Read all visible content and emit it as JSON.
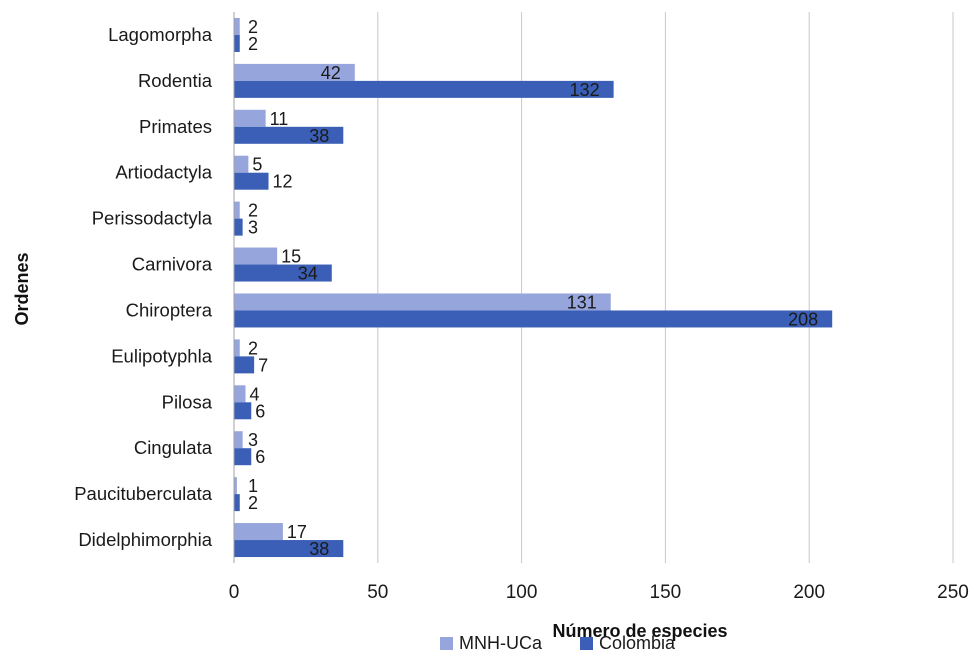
{
  "chart_data": {
    "type": "bar",
    "orientation": "horizontal",
    "categories": [
      "Lagomorpha",
      "Rodentia",
      "Primates",
      "Artiodactyla",
      "Perissodactyla",
      "Carnivora",
      "Chiroptera",
      "Eulipotyphla",
      "Pilosa",
      "Cingulata",
      "Paucituberculata",
      "Didelphimorphia"
    ],
    "series": [
      {
        "name": "MNH-UCa",
        "color": "#96a6dc",
        "values": [
          2,
          42,
          11,
          5,
          2,
          15,
          131,
          2,
          4,
          3,
          1,
          17
        ]
      },
      {
        "name": "Colombia",
        "color": "#3b5fb6",
        "values": [
          2,
          132,
          38,
          12,
          3,
          34,
          208,
          7,
          6,
          6,
          2,
          38
        ]
      }
    ],
    "xlabel": "Número de especies",
    "ylabel": "Ordenes",
    "xlim": [
      0,
      250
    ],
    "xticks": [
      0,
      50,
      100,
      150,
      200,
      250
    ],
    "grid": true,
    "legend_position": "bottom"
  }
}
